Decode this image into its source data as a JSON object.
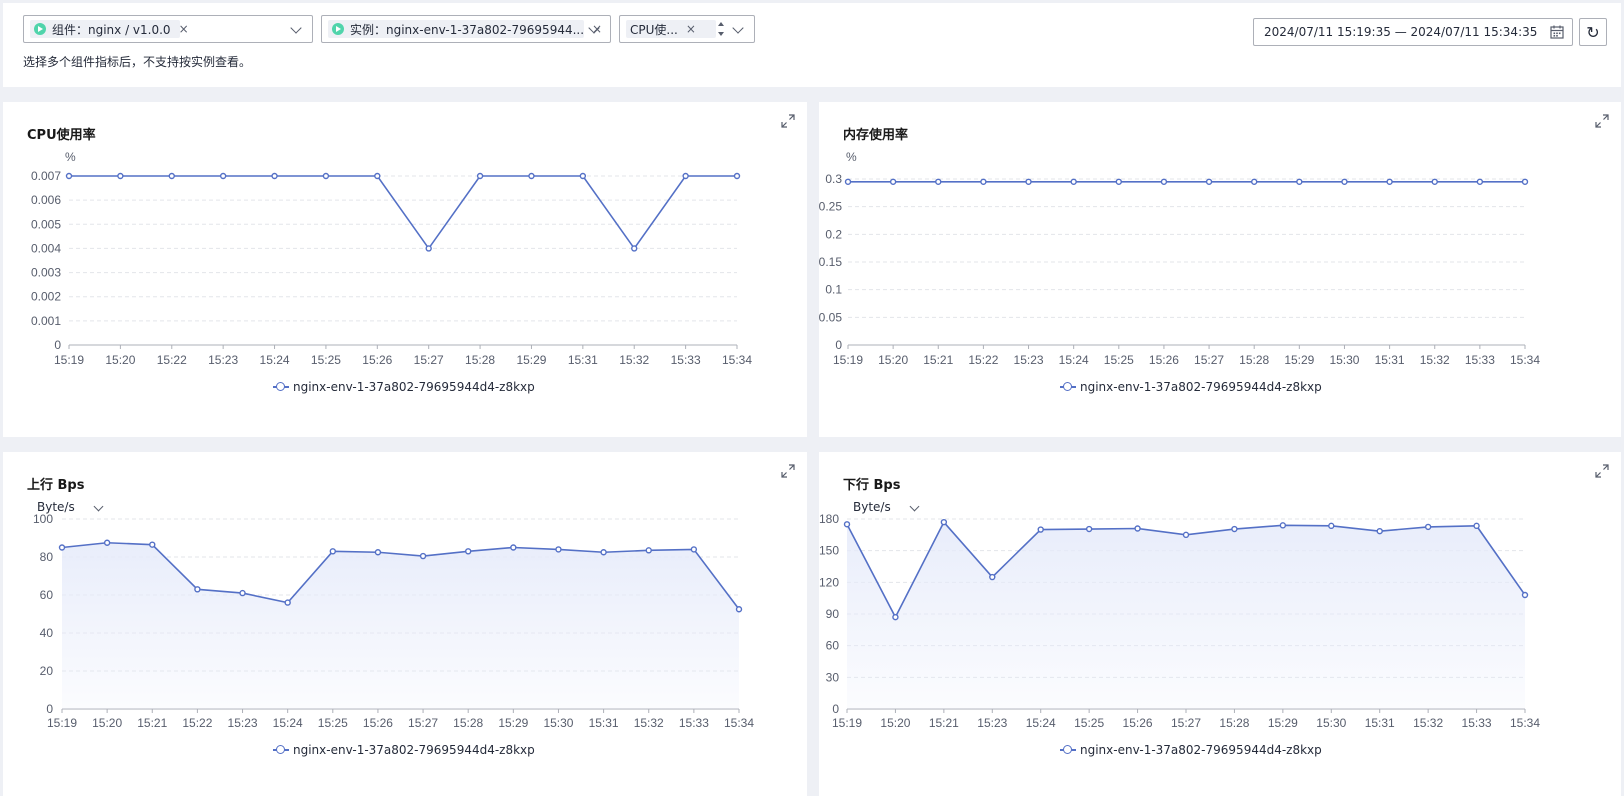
{
  "filters": {
    "component_tag": "组件：nginx / v1.0.0",
    "instance_tag": "实例：nginx-env-1-37a802-79695944...",
    "metric_tag": "CPU使...",
    "hint": "选择多个组件指标后，不支持按实例查看。",
    "time_range": "2024/07/11 15:19:35 — 2024/07/11 15:34:35",
    "close_symbol": "×",
    "refresh_symbol": "↻"
  },
  "colors": {
    "line": "#5470c6",
    "area": "#e6ebfa",
    "grid": "#e3e5ea",
    "axis": "#adb0b8",
    "accent": "#50d4ab"
  },
  "panels": {
    "cpu": {
      "title": "CPU使用率",
      "chart_data": {
        "type": "line",
        "title": "CPU使用率",
        "yunit": "%",
        "categories": [
          "15:19",
          "15:20",
          "15:22",
          "15:23",
          "15:24",
          "15:25",
          "15:26",
          "15:27",
          "15:28",
          "15:29",
          "15:31",
          "15:32",
          "15:33",
          "15:34"
        ],
        "series": [
          {
            "name": "nginx-env-1-37a802-79695944d4-z8kxp",
            "values": [
              0.007,
              0.007,
              0.007,
              0.007,
              0.007,
              0.007,
              0.007,
              0.004,
              0.007,
              0.007,
              0.007,
              0.004,
              0.007,
              0.007
            ]
          }
        ],
        "yticks": [
          "0",
          "0.001",
          "0.002",
          "0.003",
          "0.004",
          "0.005",
          "0.006",
          "0.007"
        ],
        "ylim": [
          0,
          0.007
        ],
        "area": false,
        "legend": "bottom"
      }
    },
    "mem": {
      "title": "内存使用率",
      "chart_data": {
        "type": "line",
        "title": "内存使用率",
        "yunit": "%",
        "categories": [
          "15:19",
          "15:20",
          "15:21",
          "15:22",
          "15:23",
          "15:24",
          "15:25",
          "15:26",
          "15:27",
          "15:28",
          "15:29",
          "15:30",
          "15:31",
          "15:32",
          "15:33",
          "15:34"
        ],
        "series": [
          {
            "name": "nginx-env-1-37a802-79695944d4-z8kxp",
            "values": [
              0.295,
              0.295,
              0.295,
              0.295,
              0.295,
              0.295,
              0.295,
              0.295,
              0.295,
              0.295,
              0.295,
              0.295,
              0.295,
              0.295,
              0.295,
              0.295
            ]
          }
        ],
        "yticks": [
          "0",
          "0.05",
          "0.1",
          "0.15",
          "0.2",
          "0.25",
          "0.3"
        ],
        "ylim": [
          0,
          0.3
        ],
        "area": false,
        "legend": "bottom"
      }
    },
    "up": {
      "title": "上行 Bps",
      "unit_select": "Byte/s",
      "chart_data": {
        "type": "area",
        "title": "上行 Bps",
        "categories": [
          "15:19",
          "15:20",
          "15:21",
          "15:22",
          "15:23",
          "15:24",
          "15:25",
          "15:26",
          "15:27",
          "15:28",
          "15:29",
          "15:30",
          "15:31",
          "15:32",
          "15:33",
          "15:34"
        ],
        "series": [
          {
            "name": "nginx-env-1-37a802-79695944d4-z8kxp",
            "values": [
              85,
              87.5,
              86.5,
              63,
              61,
              56,
              83,
              82.5,
              80.5,
              83,
              85,
              84,
              82.5,
              83.5,
              84,
              52.5
            ]
          }
        ],
        "yticks": [
          "0",
          "20",
          "40",
          "60",
          "80",
          "100"
        ],
        "ylim": [
          0,
          100
        ],
        "area": true,
        "legend": "bottom"
      }
    },
    "down": {
      "title": "下行 Bps",
      "unit_select": "Byte/s",
      "chart_data": {
        "type": "area",
        "title": "下行 Bps",
        "categories": [
          "15:19",
          "15:20",
          "15:21",
          "15:23",
          "15:24",
          "15:25",
          "15:26",
          "15:27",
          "15:28",
          "15:29",
          "15:30",
          "15:31",
          "15:32",
          "15:33",
          "15:34"
        ],
        "series": [
          {
            "name": "nginx-env-1-37a802-79695944d4-z8kxp",
            "values": [
              175,
              87,
              177,
              125,
              170,
              170.5,
              171,
              165,
              170.5,
              174,
              173.5,
              168.5,
              172.5,
              173.5,
              108
            ]
          }
        ],
        "yticks": [
          "0",
          "30",
          "60",
          "90",
          "120",
          "150",
          "180"
        ],
        "ylim": [
          0,
          180
        ],
        "area": true,
        "legend": "bottom"
      }
    }
  }
}
